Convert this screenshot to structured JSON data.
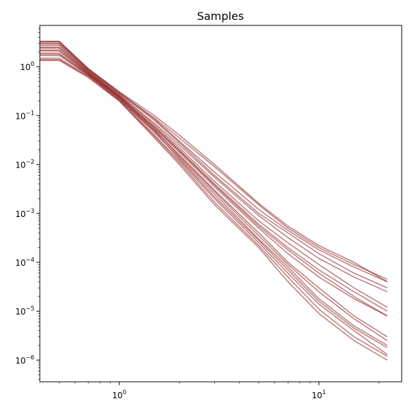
{
  "chart_data": {
    "type": "line",
    "title": "Samples",
    "xlabel": "",
    "ylabel": "",
    "xscale": "log",
    "yscale": "log",
    "xlim": [
      0.4,
      26
    ],
    "ylim": [
      3.6e-07,
      7.0
    ],
    "grid": false,
    "legend": "none",
    "line_color": "#8b1a1a",
    "x_ticks": [
      {
        "value": 1,
        "base": "10",
        "exp": "0"
      },
      {
        "value": 10,
        "base": "10",
        "exp": "1"
      }
    ],
    "y_ticks": [
      {
        "value": 1,
        "base": "10",
        "exp": "0"
      },
      {
        "value": 0.1,
        "base": "10",
        "exp": "−1"
      },
      {
        "value": 0.01,
        "base": "10",
        "exp": "−2"
      },
      {
        "value": 0.001,
        "base": "10",
        "exp": "−3"
      },
      {
        "value": 0.0001,
        "base": "10",
        "exp": "−4"
      },
      {
        "value": 1e-05,
        "base": "10",
        "exp": "−5"
      },
      {
        "value": 1e-06,
        "base": "10",
        "exp": "−6"
      }
    ],
    "x": [
      0.4,
      0.5,
      0.7,
      1,
      1.5,
      2,
      3,
      5,
      7,
      10,
      15,
      22
    ],
    "series": [
      {
        "values": [
          3.3,
          3.3,
          0.9,
          0.3,
          0.085,
          0.03,
          0.007,
          0.0012,
          0.00045,
          0.00018,
          8e-05,
          4e-05
        ]
      },
      {
        "values": [
          3.0,
          3.0,
          0.85,
          0.28,
          0.08,
          0.028,
          0.006,
          0.001,
          0.0004,
          0.00015,
          6e-05,
          3e-05
        ]
      },
      {
        "values": [
          2.7,
          2.7,
          0.8,
          0.26,
          0.07,
          0.025,
          0.0055,
          0.0009,
          0.00032,
          0.00012,
          5e-05,
          2.5e-05
        ]
      },
      {
        "values": [
          2.4,
          2.4,
          0.75,
          0.25,
          0.06,
          0.02,
          0.004,
          0.0006,
          0.0002,
          7e-05,
          2.5e-05,
          1e-05
        ]
      },
      {
        "values": [
          2.1,
          2.1,
          0.72,
          0.24,
          0.055,
          0.018,
          0.0035,
          0.0005,
          0.00015,
          5e-05,
          1.8e-05,
          8e-06
        ]
      },
      {
        "values": [
          1.9,
          1.9,
          0.7,
          0.23,
          0.05,
          0.016,
          0.003,
          0.0004,
          0.0001,
          3e-05,
          8e-06,
          3e-06
        ]
      },
      {
        "values": [
          1.7,
          1.7,
          0.68,
          0.22,
          0.045,
          0.014,
          0.0025,
          0.0003,
          8e-05,
          1.8e-05,
          5e-06,
          2e-06
        ]
      },
      {
        "values": [
          1.5,
          1.5,
          0.65,
          0.21,
          0.04,
          0.012,
          0.002,
          0.00025,
          6e-05,
          1.4e-05,
          4e-06,
          1.3e-06
        ]
      },
      {
        "values": [
          1.35,
          1.35,
          0.6,
          0.2,
          0.035,
          0.01,
          0.0015,
          0.0002,
          4e-05,
          9e-06,
          2.5e-06,
          1e-06
        ]
      },
      {
        "values": [
          3.2,
          3.2,
          0.88,
          0.29,
          0.09,
          0.035,
          0.009,
          0.0015,
          0.0005,
          0.0002,
          9e-05,
          4.5e-05
        ]
      },
      {
        "values": [
          2.9,
          2.9,
          0.82,
          0.27,
          0.065,
          0.022,
          0.0045,
          0.0007,
          0.00025,
          9e-05,
          3e-05,
          1.2e-05
        ]
      },
      {
        "values": [
          2.2,
          2.2,
          0.74,
          0.24,
          0.052,
          0.015,
          0.0028,
          0.00035,
          9e-05,
          2.5e-05,
          7e-06,
          2.5e-06
        ]
      },
      {
        "values": [
          1.8,
          1.8,
          0.69,
          0.22,
          0.048,
          0.013,
          0.0022,
          0.00028,
          7e-05,
          1.6e-05,
          4.5e-06,
          1.8e-06
        ]
      },
      {
        "values": [
          2.5,
          2.5,
          0.78,
          0.25,
          0.058,
          0.019,
          0.0038,
          0.00055,
          0.00018,
          6e-05,
          2e-05,
          8e-06
        ]
      },
      {
        "values": [
          3.3,
          3.3,
          0.92,
          0.31,
          0.1,
          0.04,
          0.01,
          0.0016,
          0.00055,
          0.00022,
          0.0001,
          4e-05
        ]
      },
      {
        "values": [
          1.4,
          1.4,
          0.63,
          0.2,
          0.038,
          0.011,
          0.0017,
          0.00022,
          5e-05,
          1.1e-05,
          3e-06,
          1.2e-06
        ]
      }
    ]
  }
}
